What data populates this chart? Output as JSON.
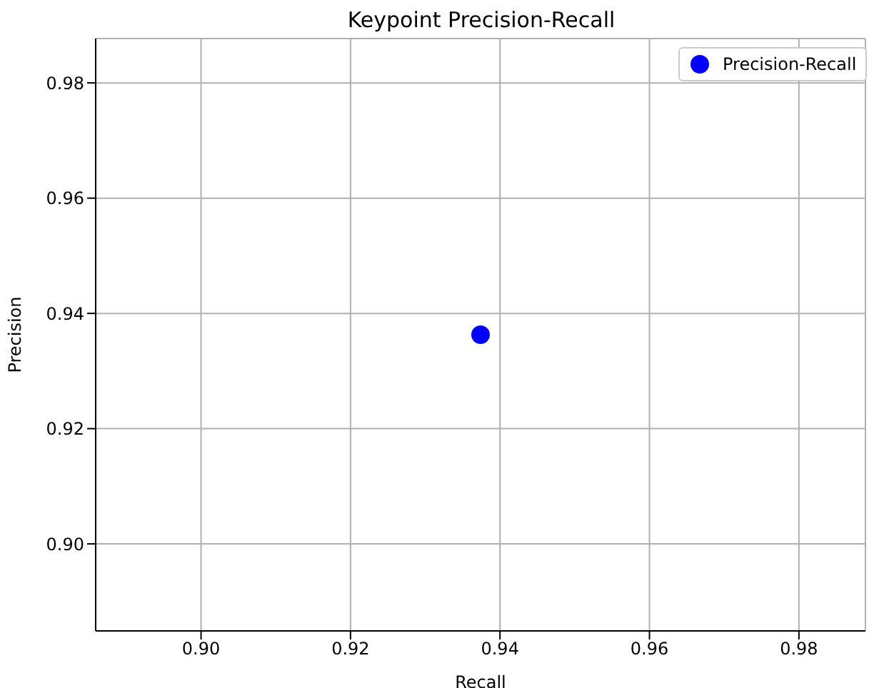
{
  "chart_data": {
    "type": "scatter",
    "title": "Keypoint Precision-Recall",
    "xlabel": "Recall",
    "ylabel": "Precision",
    "x": [
      0.9374
    ],
    "series": [
      {
        "name": "Precision-Recall",
        "color": "#0000ff",
        "values": [
          0.9363
        ]
      }
    ],
    "xlim": [
      0.8859,
      0.9889
    ],
    "ylim": [
      0.8849,
      0.9877
    ],
    "xticks": [
      {
        "value": 0.9,
        "label": "0.90"
      },
      {
        "value": 0.92,
        "label": "0.92"
      },
      {
        "value": 0.94,
        "label": "0.94"
      },
      {
        "value": 0.96,
        "label": "0.96"
      },
      {
        "value": 0.98,
        "label": "0.98"
      }
    ],
    "yticks": [
      {
        "value": 0.9,
        "label": "0.90"
      },
      {
        "value": 0.92,
        "label": "0.92"
      },
      {
        "value": 0.94,
        "label": "0.94"
      },
      {
        "value": 0.96,
        "label": "0.96"
      },
      {
        "value": 0.98,
        "label": "0.98"
      }
    ],
    "grid": true,
    "legend": "top right",
    "marker": "circle"
  }
}
